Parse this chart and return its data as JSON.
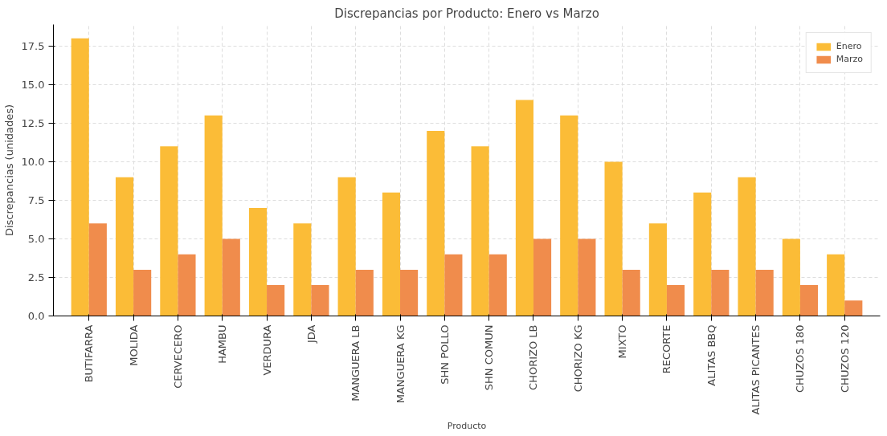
{
  "chart_data": {
    "type": "bar",
    "title": "Discrepancias por Producto: Enero vs Marzo",
    "xlabel": "Producto",
    "ylabel": "Discrepancias (unidades)",
    "categories": [
      "BUTIFARRA",
      "MOLIDA",
      "CERVECERO",
      "HAMBU",
      "VERDURA",
      "JDA",
      "MANGUERA LB",
      "MANGUERA KG",
      "SHN POLLO",
      "SHN COMUN",
      "CHORIZO LB",
      "CHORIZO KG",
      "MIXTO",
      "RECORTE",
      "ALITAS BBQ",
      "ALITAS PICANTES",
      "CHUZOS 180",
      "CHUZOS 120"
    ],
    "series": [
      {
        "name": "Enero",
        "color": "#fbbc37",
        "values": [
          18,
          9,
          11,
          13,
          7,
          6,
          9,
          8,
          12,
          11,
          14,
          13,
          10,
          6,
          8,
          9,
          5,
          4
        ]
      },
      {
        "name": "Marzo",
        "color": "#f08c4c",
        "values": [
          6,
          3,
          4,
          5,
          2,
          2,
          3,
          3,
          4,
          4,
          5,
          5,
          3,
          2,
          3,
          3,
          2,
          1
        ]
      }
    ],
    "ylim": [
      0,
      18.9
    ],
    "yticks": [
      {
        "value": 0,
        "label": "0.0"
      },
      {
        "value": 2.5,
        "label": "2.5"
      },
      {
        "value": 5,
        "label": "5.0"
      },
      {
        "value": 7.5,
        "label": "7.5"
      },
      {
        "value": 10,
        "label": "10.0"
      },
      {
        "value": 12.5,
        "label": "12.5"
      },
      {
        "value": 15,
        "label": "15.0"
      },
      {
        "value": 17.5,
        "label": "17.5"
      }
    ],
    "grid": true,
    "legend": "top right"
  }
}
